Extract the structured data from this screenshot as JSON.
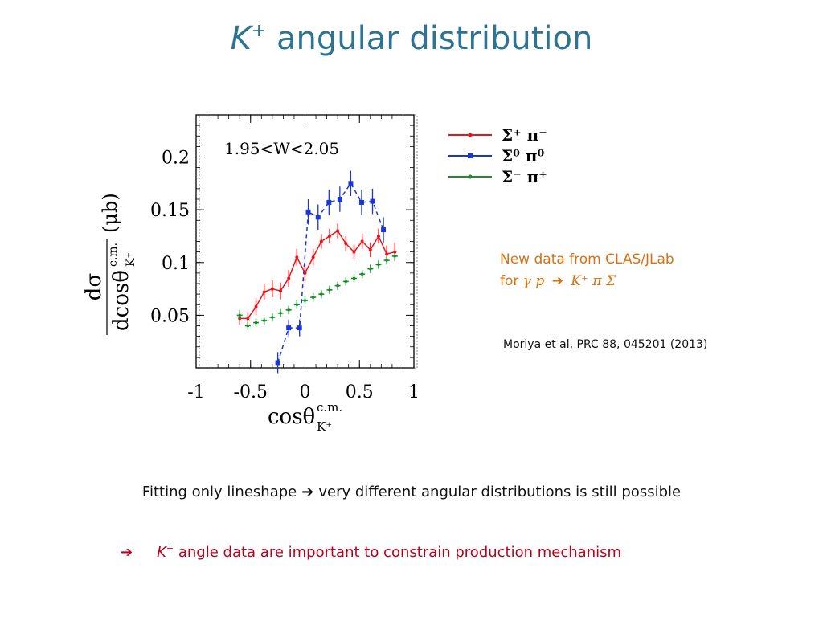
{
  "slide": {
    "title_k": "K",
    "title_sup": "+",
    "title_rest": "angular distribution",
    "note_line1": "New data from CLAS/JLab",
    "note_for": "for",
    "note_reactant": "γ p",
    "note_arrow": "➔",
    "note_products": "K⁺ π Σ",
    "reference": "Moriya et al, PRC 88, 045201 (2013)",
    "statement1_a": "Fitting only lineshape",
    "statement1_arrow": "➔",
    "statement1_b": "very  different angular distributions is still possible",
    "statement2_arrow": "➔",
    "statement2_k": "K",
    "statement2_sup": "+",
    "statement2_rest": "angle data are important to constrain production mechanism"
  },
  "chart_data": {
    "type": "line",
    "annotation": "1.95<W<2.05",
    "xlabel": "cosθ",
    "xlabel_sup": "c.m.",
    "xlabel_sub": "K⁺",
    "ylabel_num": "dσ",
    "ylabel_den": "dcosθ",
    "ylabel_den_sup": "c.m.",
    "ylabel_den_sub": "K⁺",
    "ylabel_unit": "(μb)",
    "xlim": [
      -1,
      1
    ],
    "ylim": [
      0.0,
      0.24
    ],
    "xticks": [
      -1,
      -0.5,
      0,
      0.5,
      1
    ],
    "xtick_labels": [
      "-1",
      "-0.5",
      "0",
      "0.5",
      "1"
    ],
    "yticks": [
      0.05,
      0.1,
      0.15,
      0.2
    ],
    "ytick_labels": [
      "0.05",
      "0.1",
      "0.15",
      "0.2"
    ],
    "legend_position": "outside-right-top",
    "grid": false,
    "series": [
      {
        "name": "Σ⁺ π⁻",
        "color": "#e8161a",
        "dashed": false,
        "marker": "dot",
        "x": [
          -0.6,
          -0.525,
          -0.45,
          -0.375,
          -0.3,
          -0.225,
          -0.15,
          -0.075,
          0.0,
          0.075,
          0.15,
          0.225,
          0.3,
          0.375,
          0.45,
          0.525,
          0.6,
          0.675,
          0.75,
          0.825
        ],
        "y": [
          0.047,
          0.047,
          0.058,
          0.072,
          0.075,
          0.073,
          0.085,
          0.105,
          0.09,
          0.105,
          0.12,
          0.125,
          0.13,
          0.118,
          0.11,
          0.12,
          0.112,
          0.125,
          0.108,
          0.11
        ],
        "err": [
          0.006,
          0.006,
          0.008,
          0.008,
          0.008,
          0.008,
          0.008,
          0.008,
          0.008,
          0.008,
          0.007,
          0.007,
          0.007,
          0.007,
          0.007,
          0.007,
          0.007,
          0.007,
          0.008,
          0.009
        ]
      },
      {
        "name": "Σ⁰ π⁰",
        "color": "#1a35d8",
        "dashed": true,
        "marker": "square",
        "x": [
          -0.25,
          -0.15,
          -0.05,
          0.03,
          0.12,
          0.22,
          0.32,
          0.42,
          0.52,
          0.62,
          0.72
        ],
        "y": [
          0.005,
          0.038,
          0.038,
          0.148,
          0.143,
          0.157,
          0.16,
          0.175,
          0.157,
          0.158,
          0.131
        ],
        "err": [
          0.01,
          0.008,
          0.008,
          0.012,
          0.012,
          0.012,
          0.012,
          0.012,
          0.012,
          0.012,
          0.012
        ]
      },
      {
        "name": "Σ⁻ π⁺",
        "color": "#1c8c2c",
        "dashed": false,
        "marker": "cross",
        "x": [
          -0.6,
          -0.525,
          -0.45,
          -0.375,
          -0.3,
          -0.225,
          -0.15,
          -0.075,
          0.0,
          0.075,
          0.15,
          0.225,
          0.3,
          0.375,
          0.45,
          0.525,
          0.6,
          0.675,
          0.75,
          0.825
        ],
        "y": [
          0.05,
          0.04,
          0.043,
          0.045,
          0.048,
          0.052,
          0.055,
          0.06,
          0.064,
          0.067,
          0.07,
          0.074,
          0.078,
          0.082,
          0.085,
          0.089,
          0.094,
          0.098,
          0.102,
          0.106
        ],
        "err": [
          0.005,
          0.004,
          0.004,
          0.004,
          0.004,
          0.004,
          0.004,
          0.004,
          0.004,
          0.004,
          0.004,
          0.004,
          0.004,
          0.004,
          0.004,
          0.004,
          0.004,
          0.004,
          0.004,
          0.004
        ]
      }
    ]
  }
}
